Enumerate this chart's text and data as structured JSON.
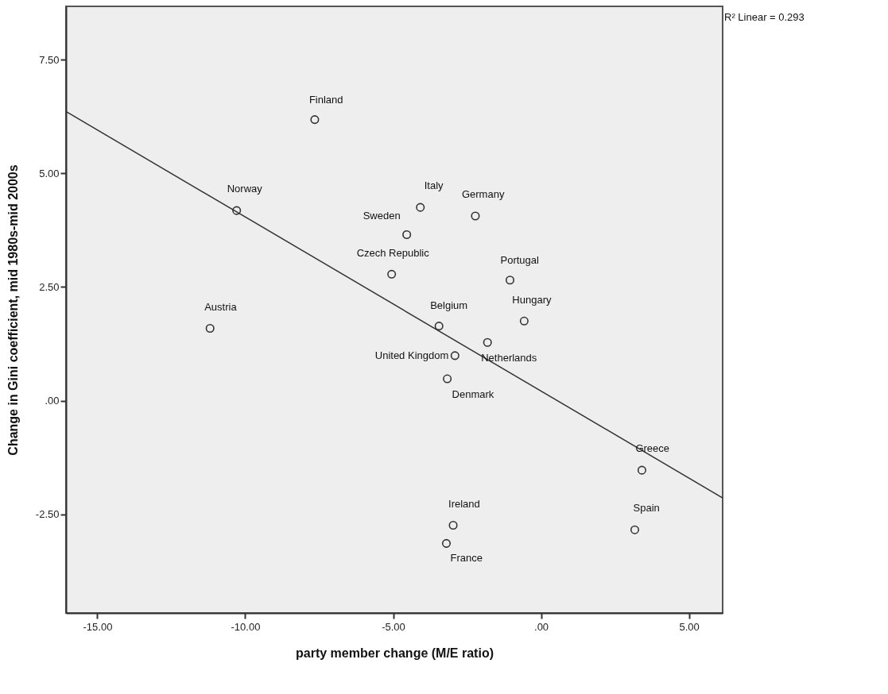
{
  "chart_data": {
    "type": "scatter",
    "xlabel": "party member change (M/E ratio)",
    "ylabel": "Change in Gini coefficient, mid 1980s-mid 2000s",
    "xlim": [
      -16.06,
      6.14
    ],
    "ylim": [
      -4.67,
      8.67
    ],
    "xticks": [
      {
        "value": -15,
        "label": "-15.00"
      },
      {
        "value": -10,
        "label": "-10.00"
      },
      {
        "value": -5,
        "label": "-5.00"
      },
      {
        "value": 0,
        "label": ".00"
      },
      {
        "value": 5,
        "label": "5.00"
      }
    ],
    "yticks": [
      {
        "value": -2.5,
        "label": "-2.50"
      },
      {
        "value": 0,
        "label": ".00"
      },
      {
        "value": 2.5,
        "label": "2.50"
      },
      {
        "value": 5,
        "label": "5.00"
      },
      {
        "value": 7.5,
        "label": "7.50"
      }
    ],
    "series": [
      {
        "type": "scatter",
        "marker": "circle",
        "color": "#333333",
        "x": [
          -7.65,
          -10.29,
          -11.19,
          -4.54,
          -5.05,
          -4.08,
          -2.22,
          -1.05,
          -3.45,
          -0.57,
          -1.81,
          -2.91,
          -3.17,
          3.41,
          3.17,
          -2.97,
          -3.2
        ],
        "values": [
          6.18,
          4.18,
          1.59,
          3.65,
          2.78,
          4.25,
          4.06,
          2.65,
          1.64,
          1.75,
          1.28,
          0.99,
          0.48,
          -1.53,
          -2.84,
          -2.74,
          -3.14
        ]
      },
      {
        "type": "line",
        "marker": "none",
        "color": "#333333",
        "x": [
          -16.06,
          6.14
        ],
        "values": [
          6.36,
          -2.14
        ]
      }
    ],
    "annotations": [
      "R² Linear = 0.293",
      {
        "text": "Finland",
        "x": -7.65,
        "y": 6.18
      },
      {
        "text": "Norway",
        "x": -10.29,
        "y": 4.18
      },
      {
        "text": "Austria",
        "x": -11.19,
        "y": 1.59
      },
      {
        "text": "Sweden",
        "x": -4.54,
        "y": 3.65
      },
      {
        "text": "Czech Republic",
        "x": -5.05,
        "y": 2.78
      },
      {
        "text": "Italy",
        "x": -4.08,
        "y": 4.25
      },
      {
        "text": "Germany",
        "x": -2.22,
        "y": 4.06
      },
      {
        "text": "Portugal",
        "x": -1.05,
        "y": 2.65
      },
      {
        "text": "Belgium",
        "x": -3.45,
        "y": 1.64
      },
      {
        "text": "Hungary",
        "x": -0.57,
        "y": 1.75
      },
      {
        "text": "Netherlands",
        "x": -1.81,
        "y": 1.28
      },
      {
        "text": "United Kingdom",
        "x": -2.91,
        "y": 0.99
      },
      {
        "text": "Denmark",
        "x": -3.17,
        "y": 0.48
      },
      {
        "text": "Greece",
        "x": 3.41,
        "y": -1.53
      },
      {
        "text": "Spain",
        "x": 3.17,
        "y": -2.84
      },
      {
        "text": "Ireland",
        "x": -2.97,
        "y": -2.74
      },
      {
        "text": "France",
        "x": -3.2,
        "y": -3.14
      }
    ]
  }
}
